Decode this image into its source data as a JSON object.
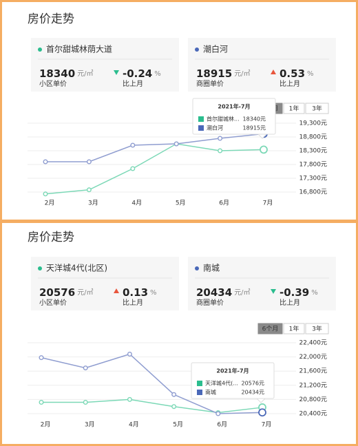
{
  "panels": [
    {
      "title": "房价走势",
      "cards": [
        {
          "name": "首尔甜城林荫大道",
          "price": 18340,
          "unit": "元/㎡",
          "price_label": "小区单价",
          "change": -0.24,
          "change_unit": "%",
          "change_label": "比上月"
        },
        {
          "name": "潮白河",
          "price": 18915,
          "unit": "元/㎡",
          "price_label": "商圈单价",
          "change": 0.53,
          "change_unit": "%",
          "change_label": "比上月"
        }
      ],
      "ranges": [
        "6个月",
        "1年",
        "3年"
      ]
    },
    {
      "title": "房价走势",
      "cards": [
        {
          "name": "天洋城4代(北区)",
          "price": 20576,
          "unit": "元/㎡",
          "price_label": "小区单价",
          "change": 0.13,
          "change_unit": "%",
          "change_label": "比上月"
        },
        {
          "name": "南城",
          "price": 20434,
          "unit": "元/㎡",
          "price_label": "商圈单价",
          "change": -0.39,
          "change_unit": "%",
          "change_label": "比上月"
        }
      ],
      "ranges": [
        "6个月",
        "1年",
        "3年"
      ]
    }
  ],
  "chart_data": [
    {
      "type": "line",
      "categories": [
        "2月",
        "3月",
        "4月",
        "5月",
        "6月",
        "7月"
      ],
      "series": [
        {
          "name": "首尔甜城林荫大道",
          "color": "#7bd8b6",
          "values": [
            16730,
            16880,
            17650,
            18550,
            18300,
            18340
          ],
          "value_labels": [
            null,
            null,
            null,
            null,
            null,
            "18340元"
          ]
        },
        {
          "name": "潮白河",
          "color": "#8f9dd0",
          "values": [
            17900,
            17900,
            18500,
            18550,
            18750,
            18915
          ],
          "value_labels": [
            null,
            null,
            null,
            null,
            null,
            "18915元"
          ]
        }
      ],
      "ylim": [
        16500,
        19500
      ],
      "yticks": [
        {
          "value": 16800,
          "label": "16,800元"
        },
        {
          "value": 17300,
          "label": "17,300元"
        },
        {
          "value": 17800,
          "label": "17,800元"
        },
        {
          "value": 18300,
          "label": "18,300元"
        },
        {
          "value": 18800,
          "label": "18,800元"
        },
        {
          "value": 19300,
          "label": "19,300元"
        }
      ],
      "grid": true,
      "tooltip": {
        "title": "2021年-7月",
        "names": [
          "首尔甜城林...",
          "潮白河"
        ]
      }
    },
    {
      "type": "line",
      "categories": [
        "2月",
        "3月",
        "4月",
        "5月",
        "6月",
        "7月"
      ],
      "series": [
        {
          "name": "天洋城4代(北区)",
          "color": "#7bd8b6",
          "values": [
            20720,
            20720,
            20800,
            20600,
            20430,
            20576
          ],
          "value_labels": [
            null,
            null,
            null,
            null,
            null,
            "20576元"
          ]
        },
        {
          "name": "南城",
          "color": "#8f9dd0",
          "values": [
            21980,
            21690,
            22080,
            20940,
            20400,
            20434
          ],
          "value_labels": [
            null,
            null,
            null,
            null,
            null,
            "20434元"
          ]
        }
      ],
      "ylim": [
        20200,
        22600
      ],
      "yticks": [
        {
          "value": 20400,
          "label": "20,400元"
        },
        {
          "value": 20800,
          "label": "20,800元"
        },
        {
          "value": 21200,
          "label": "21,200元"
        },
        {
          "value": 21600,
          "label": "21,600元"
        },
        {
          "value": 22000,
          "label": "22,000元"
        },
        {
          "value": 22400,
          "label": "22,400元"
        }
      ],
      "grid": true,
      "tooltip": {
        "title": "2021年-7月",
        "names": [
          "天洋城4代(...",
          "南城"
        ]
      }
    }
  ]
}
